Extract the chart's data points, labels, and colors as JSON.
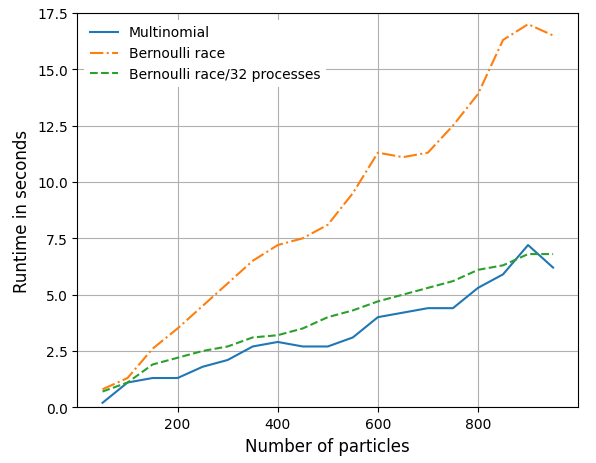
{
  "multinomial_x": [
    50,
    100,
    150,
    200,
    250,
    300,
    350,
    400,
    450,
    500,
    550,
    600,
    650,
    700,
    750,
    800,
    850,
    900,
    950
  ],
  "multinomial_y": [
    0.2,
    1.1,
    1.3,
    1.3,
    1.8,
    2.1,
    2.7,
    2.9,
    2.7,
    2.7,
    3.1,
    4.0,
    4.2,
    4.4,
    4.4,
    5.3,
    5.9,
    7.2,
    6.2
  ],
  "bernoulli_x": [
    50,
    100,
    150,
    200,
    250,
    300,
    350,
    400,
    450,
    500,
    550,
    600,
    650,
    700,
    750,
    800,
    850,
    900,
    950
  ],
  "bernoulli_y": [
    0.8,
    1.3,
    2.6,
    3.5,
    4.5,
    5.5,
    6.5,
    7.2,
    7.5,
    8.1,
    9.5,
    11.3,
    11.1,
    11.3,
    12.5,
    13.9,
    16.3,
    17.0,
    16.5
  ],
  "bernoulli32_x": [
    50,
    100,
    150,
    200,
    250,
    300,
    350,
    400,
    450,
    500,
    550,
    600,
    650,
    700,
    750,
    800,
    850,
    900,
    950
  ],
  "bernoulli32_y": [
    0.7,
    1.1,
    1.9,
    2.2,
    2.5,
    2.7,
    3.1,
    3.2,
    3.5,
    4.0,
    4.3,
    4.7,
    5.0,
    5.3,
    5.6,
    6.1,
    6.3,
    6.8,
    6.8
  ],
  "multinomial_color": "#1f77b4",
  "bernoulli_color": "#ff7f0e",
  "bernoulli32_color": "#2ca02c",
  "xlabel": "Number of particles",
  "ylabel": "Runtime in seconds",
  "ylim": [
    0.0,
    17.5
  ],
  "xlim": [
    0,
    1000
  ],
  "yticks": [
    0.0,
    2.5,
    5.0,
    7.5,
    10.0,
    12.5,
    15.0,
    17.5
  ],
  "xticks": [
    200,
    400,
    600,
    800
  ],
  "legend_labels": [
    "Multinomial",
    "Bernoulli race",
    "Bernoulli race/32 processes"
  ],
  "grid": true,
  "figsize": [
    5.96,
    4.64
  ],
  "dpi": 100
}
